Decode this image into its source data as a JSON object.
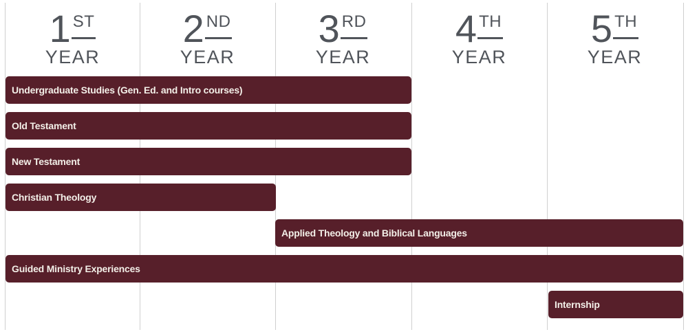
{
  "colors": {
    "bar_fill": "#571f2a",
    "bar_label": "#f3efe8",
    "header_text": "#50545a",
    "gridline": "#cfcfcf",
    "background": "#ffffff"
  },
  "headers": [
    {
      "number": "1",
      "ordinal": "ST",
      "word": "YEAR"
    },
    {
      "number": "2",
      "ordinal": "ND",
      "word": "YEAR"
    },
    {
      "number": "3",
      "ordinal": "RD",
      "word": "YEAR"
    },
    {
      "number": "4",
      "ordinal": "TH",
      "word": "YEAR"
    },
    {
      "number": "5",
      "ordinal": "TH",
      "word": "YEAR"
    }
  ],
  "chart_data": {
    "type": "bar",
    "subtype": "gantt-timeline",
    "categories": [
      "1st Year",
      "2nd Year",
      "3rd Year",
      "4th Year",
      "5th Year"
    ],
    "grid": "vertical column separators only",
    "legend": "none",
    "bar_color": "#571f2a",
    "rows": [
      {
        "label": "Undergraduate Studies (Gen. Ed. and Intro courses)",
        "start_year": 1,
        "end_year": 3
      },
      {
        "label": "Old Testament",
        "start_year": 1,
        "end_year": 3
      },
      {
        "label": "New Testament",
        "start_year": 1,
        "end_year": 3
      },
      {
        "label": "Christian Theology",
        "start_year": 1,
        "end_year": 2
      },
      {
        "label": "Applied Theology and Biblical Languages",
        "start_year": 3,
        "end_year": 5
      },
      {
        "label": "Guided Ministry Experiences",
        "start_year": 1,
        "end_year": 5
      },
      {
        "label": "Internship",
        "start_year": 5,
        "end_year": 5
      }
    ]
  }
}
